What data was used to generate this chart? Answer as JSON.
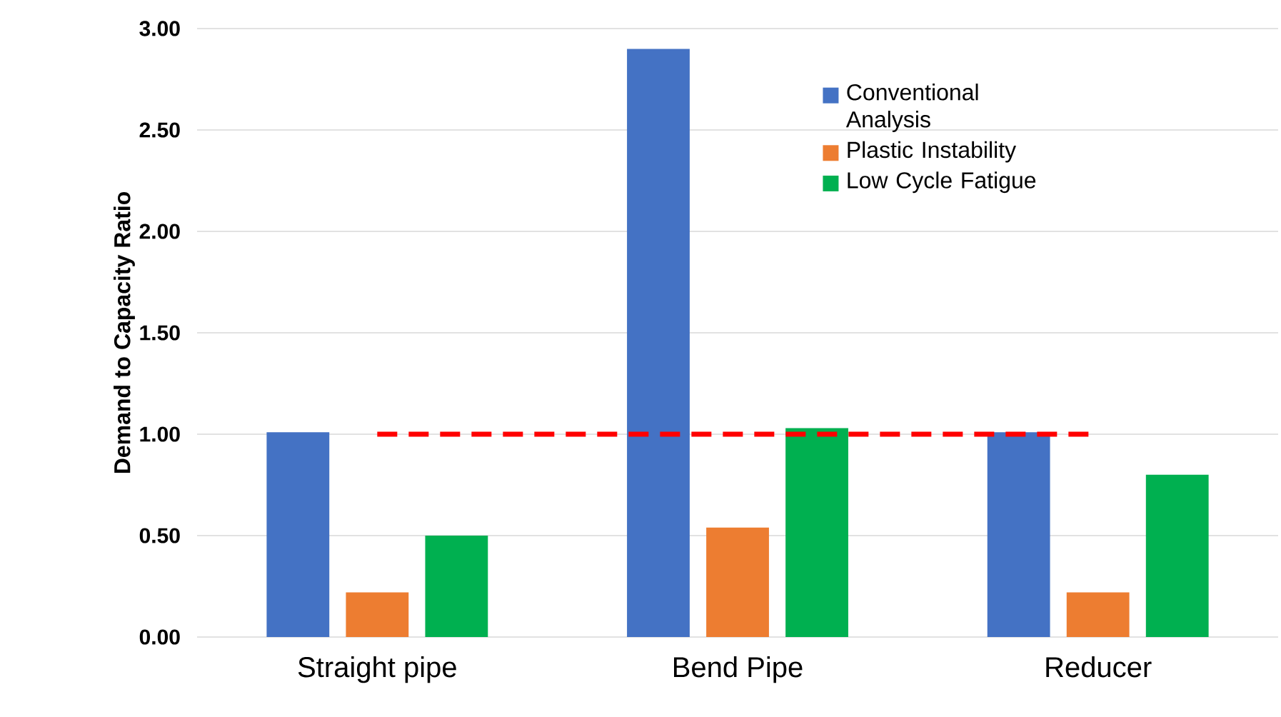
{
  "chart_data": {
    "type": "bar",
    "ylabel": "**Demand to Capacity Ratio**",
    "categories": [
      "Straight pipe",
      "Bend Pipe",
      "Reducer"
    ],
    "series": [
      {
        "name": "Conventional Analysis",
        "color": "#4472c4",
        "values": [
          1.01,
          2.9,
          1.01
        ]
      },
      {
        "name": "Plastic Instability",
        "color": "#ed7d31",
        "values": [
          0.22,
          0.54,
          0.22
        ]
      },
      {
        "name": "Low Cycle Fatigue",
        "color": "#00b050",
        "values": [
          0.5,
          1.03,
          0.8
        ]
      }
    ],
    "ylim": [
      0,
      3
    ],
    "yticks": [
      {
        "value": 0,
        "label": "0.00"
      },
      {
        "value": 0.5,
        "label": "0.50"
      },
      {
        "value": 1,
        "label": "1.00"
      },
      {
        "value": 1.5,
        "label": "1.50"
      },
      {
        "value": 2,
        "label": "2.00"
      },
      {
        "value": 2.5,
        "label": "2.50"
      },
      {
        "value": 3,
        "label": "3.00"
      }
    ],
    "grid": "y",
    "legend": "top right",
    "ref_lines": [
      {
        "axis": "y",
        "value": 1,
        "color": "#ff0000",
        "line_style": "dashed"
      }
    ]
  }
}
